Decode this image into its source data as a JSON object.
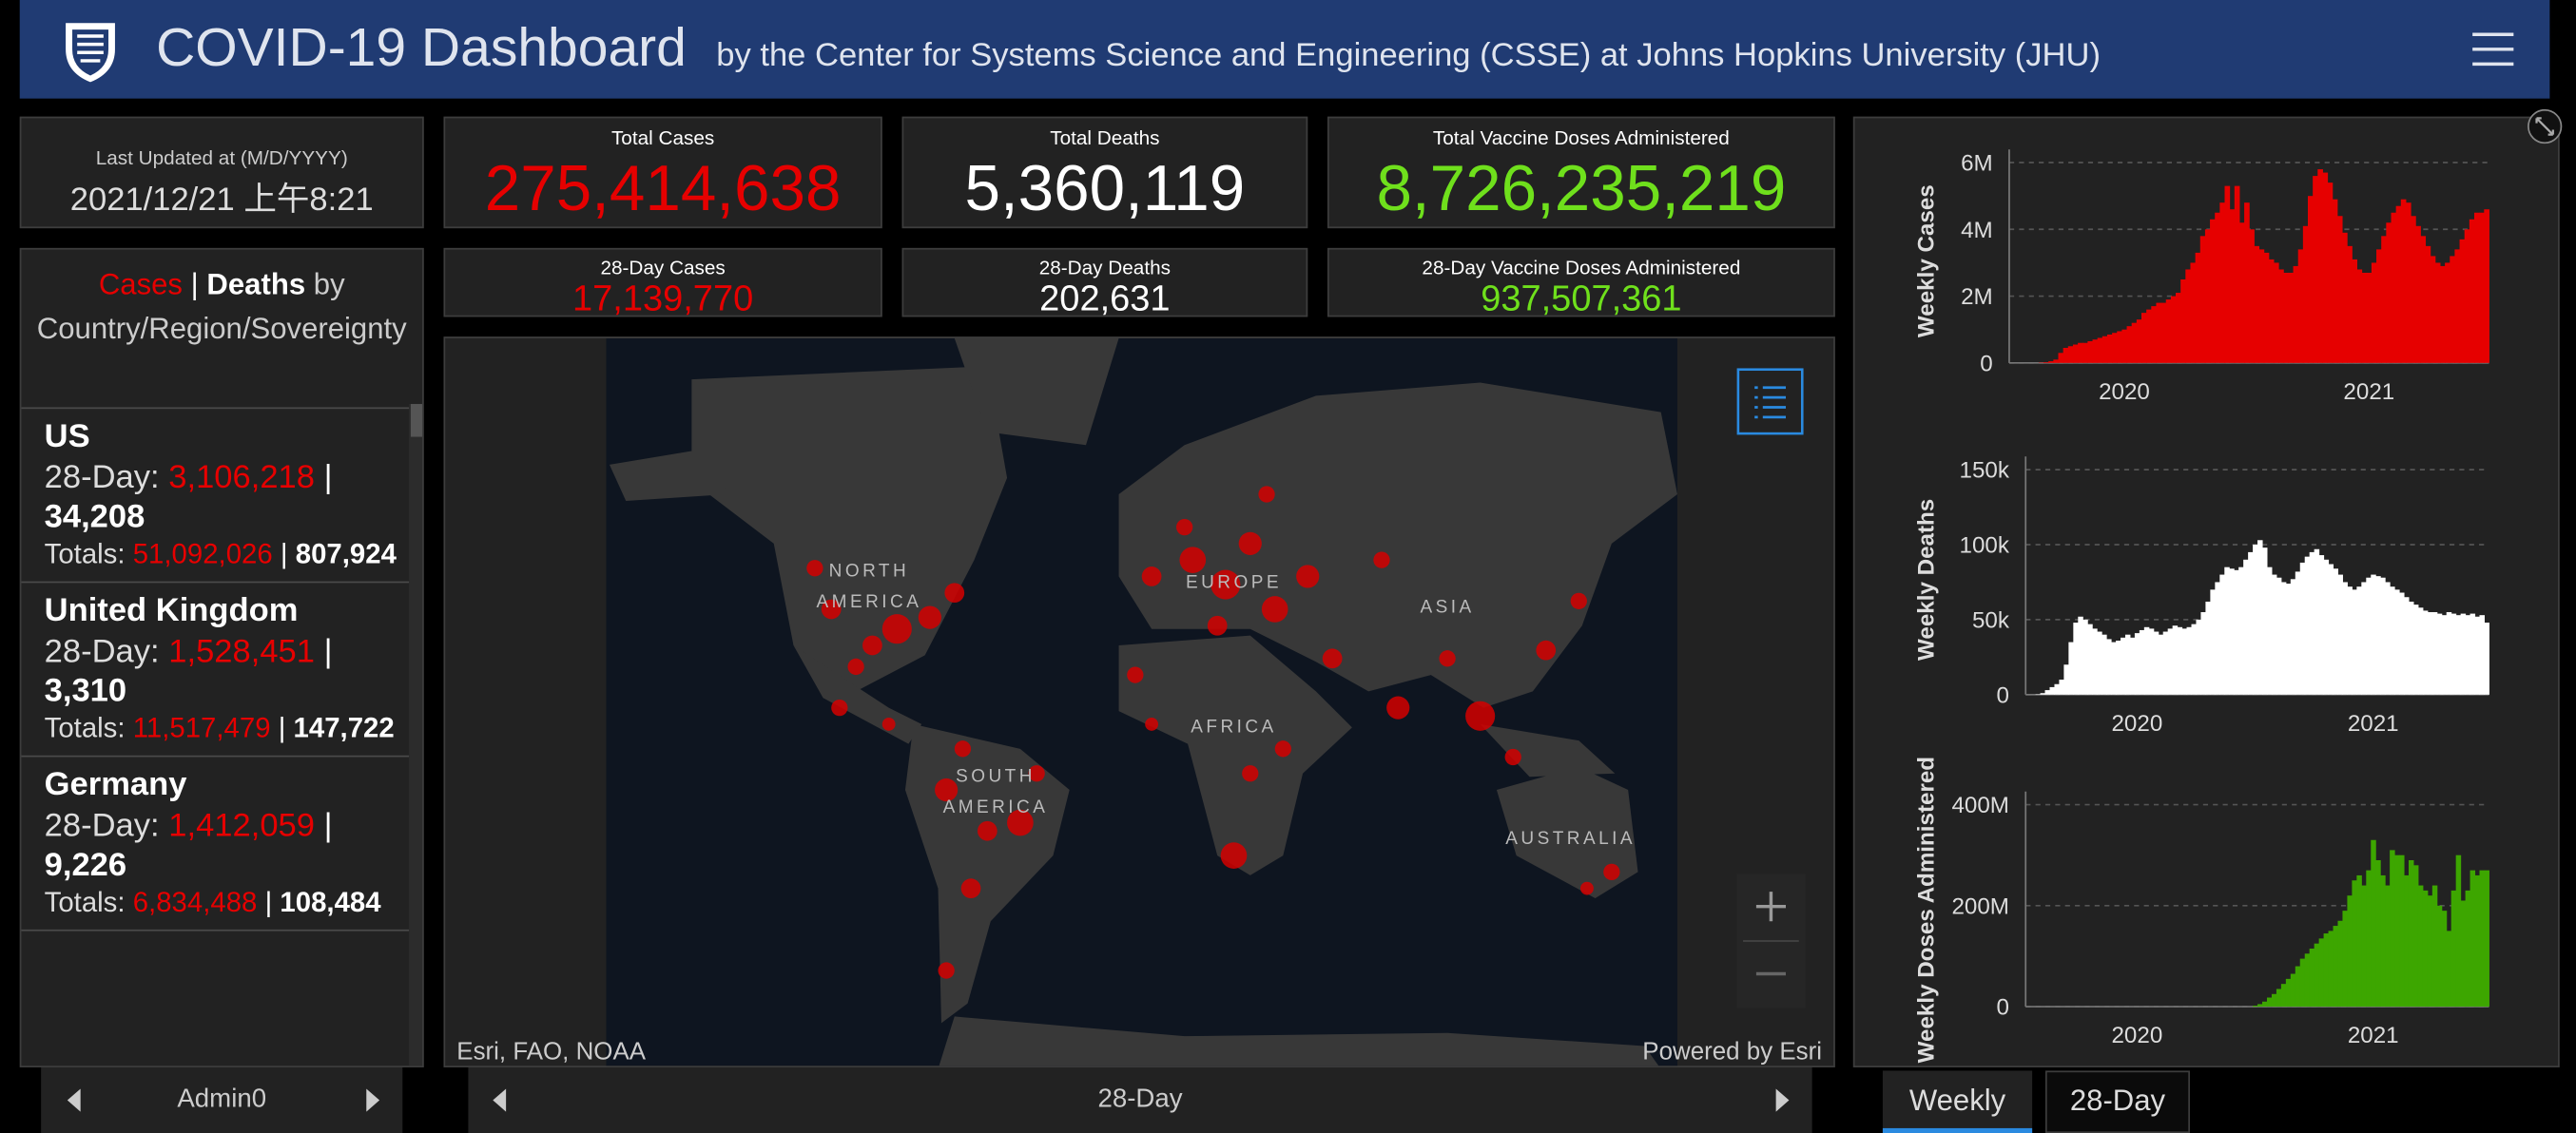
{
  "header": {
    "title": "COVID-19 Dashboard",
    "subtitle": "by the Center for Systems Science and Engineering (CSSE) at Johns Hopkins University (JHU)"
  },
  "last_updated": {
    "label": "Last Updated at (M/D/YYYY)",
    "value": "2021/12/21 上午8:21"
  },
  "stats": [
    {
      "label": "Total Cases",
      "value": "275,414,638"
    },
    {
      "label": "Total Deaths",
      "value": "5,360,119"
    },
    {
      "label": "Total Vaccine Doses Administered",
      "value": "8,726,235,219"
    },
    {
      "label": "28-Day Cases",
      "value": "17,139,770"
    },
    {
      "label": "28-Day Deaths",
      "value": "202,631"
    },
    {
      "label": "28-Day Vaccine Doses Administered",
      "value": "937,507,361"
    }
  ],
  "list": {
    "heading_cases": "Cases",
    "separator": "|",
    "heading_deaths": "Deaths",
    "heading_rest": "by Country/Region/Sovereignty",
    "day28_label": "28-Day:",
    "totals_label": "Totals:",
    "items": [
      {
        "name": "US",
        "day28_cases": "3,106,218",
        "day28_deaths": "34,208",
        "total_cases": "51,092,026",
        "total_deaths": "807,924"
      },
      {
        "name": "United Kingdom",
        "day28_cases": "1,528,451",
        "day28_deaths": "3,310",
        "total_cases": "11,517,479",
        "total_deaths": "147,722"
      },
      {
        "name": "Germany",
        "day28_cases": "1,412,059",
        "day28_deaths": "9,226",
        "total_cases": "6,834,488",
        "total_deaths": "108,484"
      }
    ],
    "footer": "Admin0"
  },
  "map": {
    "labels": [
      "NORTH AMERICA",
      "EUROPE",
      "ASIA",
      "AFRICA",
      "SOUTH AMERICA",
      "AUSTRALIA"
    ],
    "attribution": "Esri, FAO, NOAA",
    "powered": "Powered by Esri",
    "footer": "28-Day"
  },
  "tabs": [
    "Weekly",
    "28-Day"
  ],
  "chart_data": [
    {
      "type": "bar",
      "ylabel": "Weekly Cases",
      "color": "#e60000",
      "categories": [
        null,
        null,
        null,
        null,
        null,
        null,
        null,
        null,
        null,
        null,
        null,
        null,
        null,
        null,
        null,
        null,
        null,
        null,
        null,
        null,
        null,
        "2020",
        null,
        null,
        null,
        null,
        null,
        null,
        null,
        null,
        null,
        null,
        null,
        null,
        null,
        null,
        null,
        null,
        null,
        null,
        null,
        null,
        null,
        null,
        null,
        null,
        null,
        null,
        null,
        null,
        null,
        null,
        null,
        null,
        null,
        null,
        null,
        null,
        null,
        null,
        null,
        null,
        null,
        null,
        null,
        null,
        null,
        null,
        null,
        null,
        null,
        "2021",
        null,
        null,
        null,
        null,
        null,
        null,
        null,
        null,
        null,
        null,
        null,
        null,
        null,
        null,
        null,
        null,
        null,
        null,
        null,
        null,
        null,
        null,
        null,
        null
      ],
      "values": [
        0,
        0,
        0,
        0,
        10000,
        20000,
        50000,
        100000,
        300000,
        450000,
        500000,
        550000,
        600000,
        600000,
        650000,
        700000,
        750000,
        800000,
        850000,
        900000,
        950000,
        1000000,
        1100000,
        1200000,
        1300000,
        1500000,
        1600000,
        1700000,
        1800000,
        1800000,
        1900000,
        2000000,
        2100000,
        2500000,
        2800000,
        3000000,
        3300000,
        3800000,
        4000000,
        4300000,
        4500000,
        4800000,
        5300000,
        4600000,
        5300000,
        4200000,
        4800000,
        4000000,
        3500000,
        3400000,
        3300000,
        3100000,
        3000000,
        2800000,
        2700000,
        2700000,
        2900000,
        3400000,
        4100000,
        5000000,
        5600000,
        5800000,
        5700000,
        5400000,
        4900000,
        4400000,
        3900000,
        3500000,
        3100000,
        2800000,
        2700000,
        2700000,
        3000000,
        3400000,
        3800000,
        4200000,
        4500000,
        4700000,
        4900000,
        4800000,
        4400000,
        4100000,
        3800000,
        3500000,
        3200000,
        3000000,
        2900000,
        3000000,
        3200000,
        3400000,
        3700000,
        4000000,
        4300000,
        4500000,
        4500000,
        4600000
      ],
      "ylim": [
        0,
        6000000
      ],
      "yticks": [
        0,
        {
          "value": 2000000,
          "label": "2M"
        },
        {
          "value": 4000000,
          "label": "4M"
        },
        {
          "value": 6000000,
          "label": "6M"
        }
      ],
      "grid": true
    },
    {
      "type": "bar",
      "ylabel": "Weekly Deaths",
      "color": "#ffffff",
      "categories": [
        null,
        null,
        null,
        null,
        null,
        null,
        null,
        null,
        null,
        null,
        null,
        null,
        null,
        null,
        null,
        null,
        null,
        null,
        null,
        null,
        null,
        "2020",
        null,
        null,
        null,
        null,
        null,
        null,
        null,
        null,
        null,
        null,
        null,
        null,
        null,
        null,
        null,
        null,
        null,
        null,
        null,
        null,
        null,
        null,
        null,
        null,
        null,
        null,
        null,
        null,
        null,
        null,
        null,
        null,
        null,
        null,
        null,
        null,
        null,
        null,
        null,
        null,
        null,
        null,
        null,
        null,
        null,
        null,
        null,
        null,
        null,
        "2021",
        null,
        null,
        null,
        null,
        null,
        null,
        null,
        null,
        null,
        null,
        null,
        null,
        null,
        null,
        null,
        null,
        null,
        null,
        null,
        null,
        null,
        null,
        null,
        null
      ],
      "values": [
        200,
        1000,
        3000,
        5000,
        7000,
        10000,
        20000,
        35000,
        48000,
        52000,
        50000,
        47000,
        44000,
        42000,
        40000,
        37000,
        35000,
        36000,
        38000,
        40000,
        38000,
        41000,
        43000,
        45000,
        44000,
        42000,
        40000,
        42000,
        44000,
        46000,
        45000,
        44000,
        45000,
        47000,
        50000,
        55000,
        62000,
        70000,
        75000,
        80000,
        85000,
        84000,
        83000,
        85000,
        90000,
        95000,
        100000,
        103000,
        98000,
        85000,
        80000,
        78000,
        75000,
        74000,
        77000,
        82000,
        88000,
        92000,
        95000,
        97000,
        93000,
        90000,
        87000,
        84000,
        80000,
        75000,
        72000,
        70000,
        72000,
        75000,
        78000,
        80000,
        79000,
        78000,
        75000,
        72000,
        70000,
        68000,
        65000,
        62000,
        60000,
        58000,
        56000,
        55000,
        55000,
        54000,
        53000,
        55000,
        54000,
        53000,
        54000,
        53000,
        54000,
        52000,
        53000,
        48000
      ],
      "ylim": [
        0,
        150000
      ],
      "yticks": [
        0,
        {
          "value": 50000,
          "label": "50k"
        },
        {
          "value": 100000,
          "label": "100k"
        },
        {
          "value": 150000,
          "label": "150k"
        }
      ],
      "grid": true
    },
    {
      "type": "bar",
      "ylabel": "Weekly Doses Administered",
      "color": "#3da600",
      "categories": [
        null,
        null,
        null,
        null,
        null,
        null,
        null,
        null,
        null,
        null,
        null,
        null,
        null,
        null,
        null,
        null,
        null,
        null,
        null,
        null,
        null,
        "2020",
        null,
        null,
        null,
        null,
        null,
        null,
        null,
        null,
        null,
        null,
        null,
        null,
        null,
        null,
        null,
        null,
        null,
        null,
        null,
        null,
        null,
        null,
        null,
        null,
        null,
        null,
        null,
        null,
        null,
        null,
        null,
        null,
        null,
        null,
        null,
        null,
        null,
        null,
        null,
        null,
        null,
        null,
        null,
        null,
        null,
        null,
        null,
        null,
        null,
        "2021",
        null,
        null,
        null,
        null,
        null,
        null,
        null,
        null,
        null,
        null,
        null,
        null,
        null,
        null,
        null,
        null,
        null,
        null,
        null,
        null,
        null,
        null,
        null,
        null
      ],
      "values": [
        0,
        0,
        0,
        0,
        0,
        0,
        0,
        0,
        0,
        0,
        0,
        0,
        0,
        0,
        0,
        0,
        0,
        0,
        0,
        0,
        0,
        0,
        0,
        0,
        0,
        0,
        0,
        0,
        0,
        0,
        0,
        0,
        0,
        0,
        0,
        0,
        0,
        0,
        0,
        0,
        0,
        0,
        0,
        0,
        0,
        0,
        2000000,
        5000000,
        10000000,
        18000000,
        25000000,
        35000000,
        45000000,
        55000000,
        65000000,
        80000000,
        95000000,
        105000000,
        115000000,
        125000000,
        135000000,
        145000000,
        150000000,
        160000000,
        170000000,
        190000000,
        220000000,
        250000000,
        260000000,
        240000000,
        270000000,
        330000000,
        290000000,
        260000000,
        240000000,
        310000000,
        300000000,
        300000000,
        260000000,
        290000000,
        280000000,
        240000000,
        230000000,
        220000000,
        240000000,
        200000000,
        190000000,
        150000000,
        230000000,
        300000000,
        210000000,
        230000000,
        270000000,
        260000000,
        270000000,
        270000000
      ],
      "ylim": [
        0,
        400000000
      ],
      "yticks": [
        0,
        {
          "value": 200000000,
          "label": "200M"
        },
        {
          "value": 400000000,
          "label": "400M"
        }
      ],
      "grid": true
    }
  ]
}
